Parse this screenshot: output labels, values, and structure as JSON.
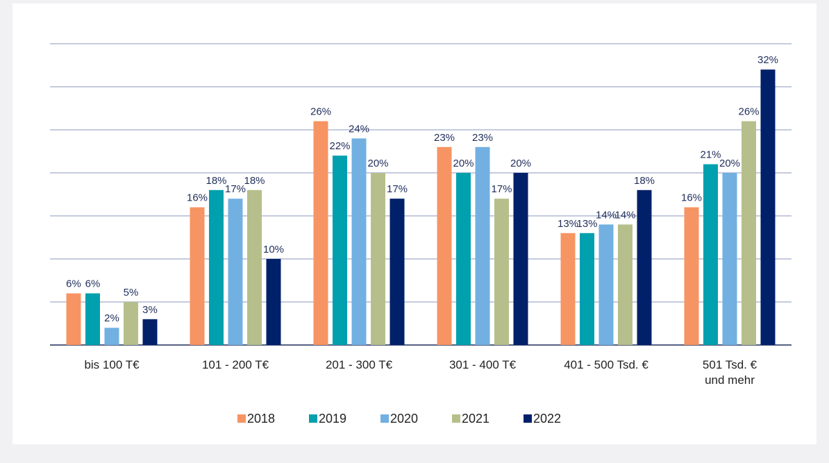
{
  "chart_data": {
    "type": "bar",
    "categories": [
      "bis 100 T€",
      "101 - 200 T€",
      "201 - 300 T€",
      "301 - 400 T€",
      "401 - 500 Tsd. €",
      "501 Tsd. €\nund mehr"
    ],
    "series": [
      {
        "name": "2018",
        "color": "#f79463",
        "values": [
          6,
          16,
          26,
          23,
          13,
          16
        ],
        "value_labels": [
          "6%",
          "16%",
          "26%",
          "23%",
          "13%",
          "16%"
        ]
      },
      {
        "name": "2019",
        "color": "#00a0ae",
        "values": [
          6,
          18,
          22,
          20,
          13,
          21
        ],
        "value_labels": [
          "6%",
          "18%",
          "22%",
          "20%",
          "13%",
          "21%"
        ]
      },
      {
        "name": "2020",
        "color": "#72b0e2",
        "values": [
          2,
          17,
          24,
          23,
          14,
          20
        ],
        "value_labels": [
          "2%",
          "17%",
          "24%",
          "23%",
          "14%",
          "20%"
        ]
      },
      {
        "name": "2021",
        "color": "#b6bf8b",
        "values": [
          5,
          18,
          20,
          17,
          14,
          26
        ],
        "value_labels": [
          "5%",
          "18%",
          "20%",
          "17%",
          "14%",
          "26%"
        ]
      },
      {
        "name": "2022",
        "color": "#002169",
        "values": [
          3,
          10,
          17,
          20,
          18,
          32
        ],
        "value_labels": [
          "3%",
          "10%",
          "17%",
          "20%",
          "18%",
          "32%"
        ]
      }
    ],
    "ylim": [
      0,
      35
    ],
    "yticks": [
      0,
      5,
      10,
      15,
      20,
      25,
      30,
      35
    ],
    "grid": true,
    "legend": "bottom"
  }
}
